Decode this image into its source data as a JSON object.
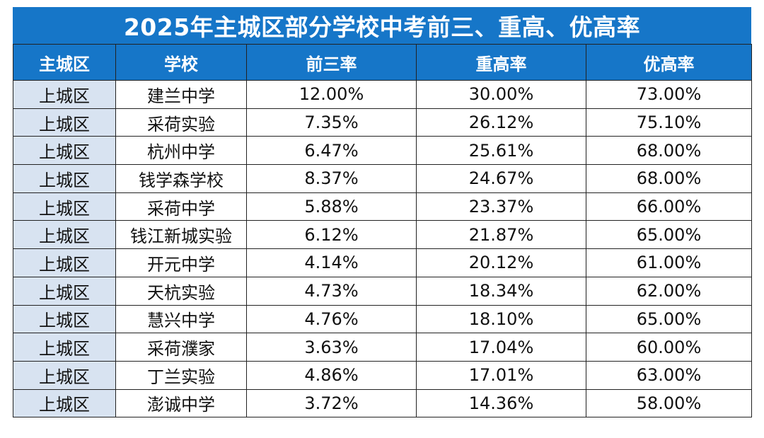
{
  "title": "2025年主城区部分学校中考前三、重高、优高率",
  "headers": [
    "主城区",
    "学校",
    "前三率",
    "重高率",
    "优高率"
  ],
  "rows": [
    [
      "上城区",
      "建兰中学",
      "12.00%",
      "30.00%",
      "73.00%"
    ],
    [
      "上城区",
      "采荷实验",
      "7.35%",
      "26.12%",
      "75.10%"
    ],
    [
      "上城区",
      "杭州中学",
      "6.47%",
      "25.61%",
      "68.00%"
    ],
    [
      "上城区",
      "钱学森学校",
      "8.37%",
      "24.67%",
      "68.00%"
    ],
    [
      "上城区",
      "采荷中学",
      "5.88%",
      "23.37%",
      "66.00%"
    ],
    [
      "上城区",
      "钱江新城实验",
      "6.12%",
      "21.87%",
      "65.00%"
    ],
    [
      "上城区",
      "开元中学",
      "4.14%",
      "20.12%",
      "61.00%"
    ],
    [
      "上城区",
      "天杭实验",
      "4.73%",
      "18.34%",
      "62.00%"
    ],
    [
      "上城区",
      "慧兴中学",
      "4.76%",
      "18.10%",
      "65.00%"
    ],
    [
      "上城区",
      "采荷濮家",
      "3.63%",
      "17.04%",
      "60.00%"
    ],
    [
      "上城区",
      "丁兰实验",
      "4.86%",
      "17.01%",
      "63.00%"
    ],
    [
      "上城区",
      "澎诚中学",
      "3.72%",
      "14.36%",
      "58.00%"
    ]
  ],
  "colors": {
    "header_bg": "#1676c8",
    "district_bg": "#d8e3f1"
  }
}
